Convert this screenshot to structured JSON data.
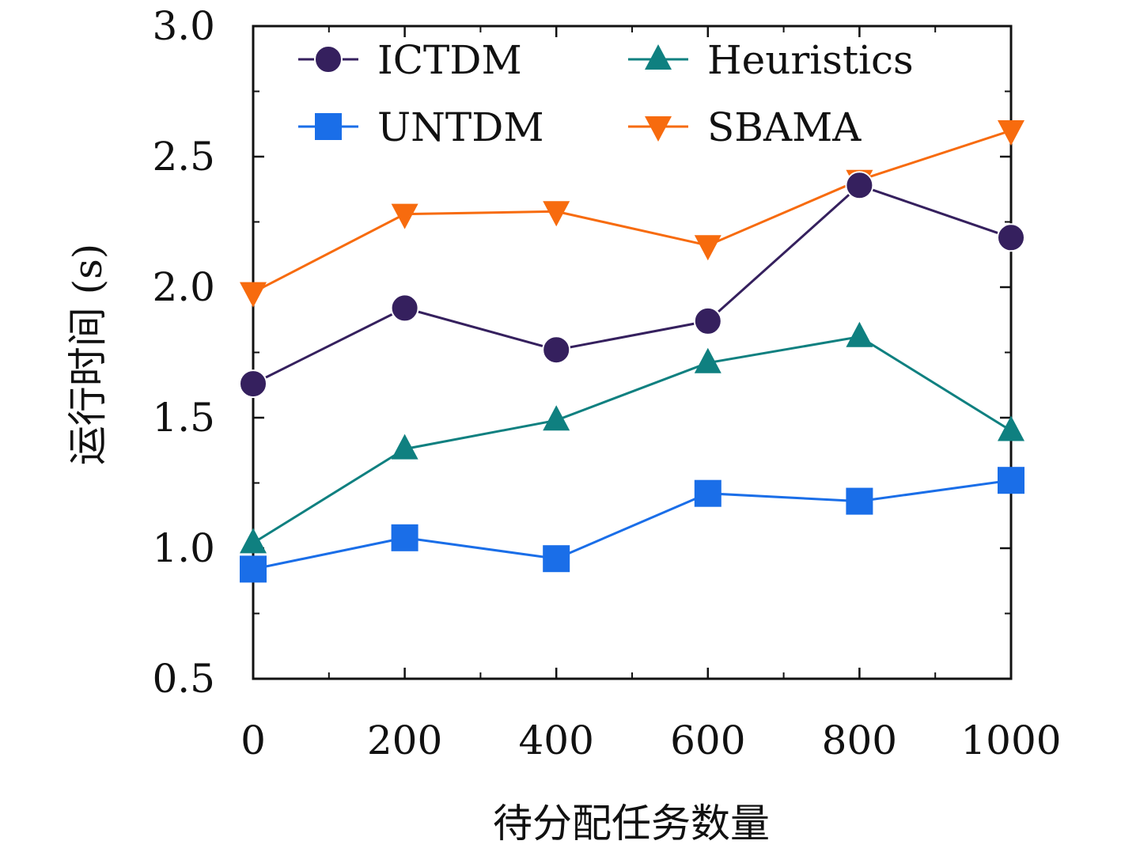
{
  "chart_data": {
    "type": "line",
    "xlabel": "待分配任务数量",
    "ylabel": "运行时间 (s)",
    "xlim": [
      0,
      1000
    ],
    "ylim": [
      0.5,
      3.0
    ],
    "x": [
      0,
      200,
      400,
      600,
      800,
      1000
    ],
    "x_ticks": [
      "0",
      "200",
      "400",
      "600",
      "800",
      "1000"
    ],
    "y_ticks": [
      "0.5",
      "1.0",
      "1.5",
      "2.0",
      "2.5",
      "3.0"
    ],
    "y_tick_values": [
      0.5,
      1.0,
      1.5,
      2.0,
      2.5,
      3.0
    ],
    "grid": false,
    "legend": "top, two columns",
    "series": [
      {
        "name": "ICTDM",
        "marker": "circle",
        "color": "#35205e",
        "values": [
          1.63,
          1.92,
          1.76,
          1.87,
          2.39,
          2.19
        ]
      },
      {
        "name": "Heuristics",
        "marker": "triangle-up",
        "color": "#0f8080",
        "values": [
          1.02,
          1.38,
          1.49,
          1.71,
          1.81,
          1.45
        ]
      },
      {
        "name": "UNTDM",
        "marker": "square",
        "color": "#1a6ee8",
        "values": [
          0.92,
          1.04,
          0.96,
          1.21,
          1.18,
          1.26
        ]
      },
      {
        "name": "SBAMA",
        "marker": "triangle-down",
        "color": "#f76b0e",
        "values": [
          1.98,
          2.28,
          2.29,
          2.16,
          2.41,
          2.6
        ]
      }
    ]
  }
}
